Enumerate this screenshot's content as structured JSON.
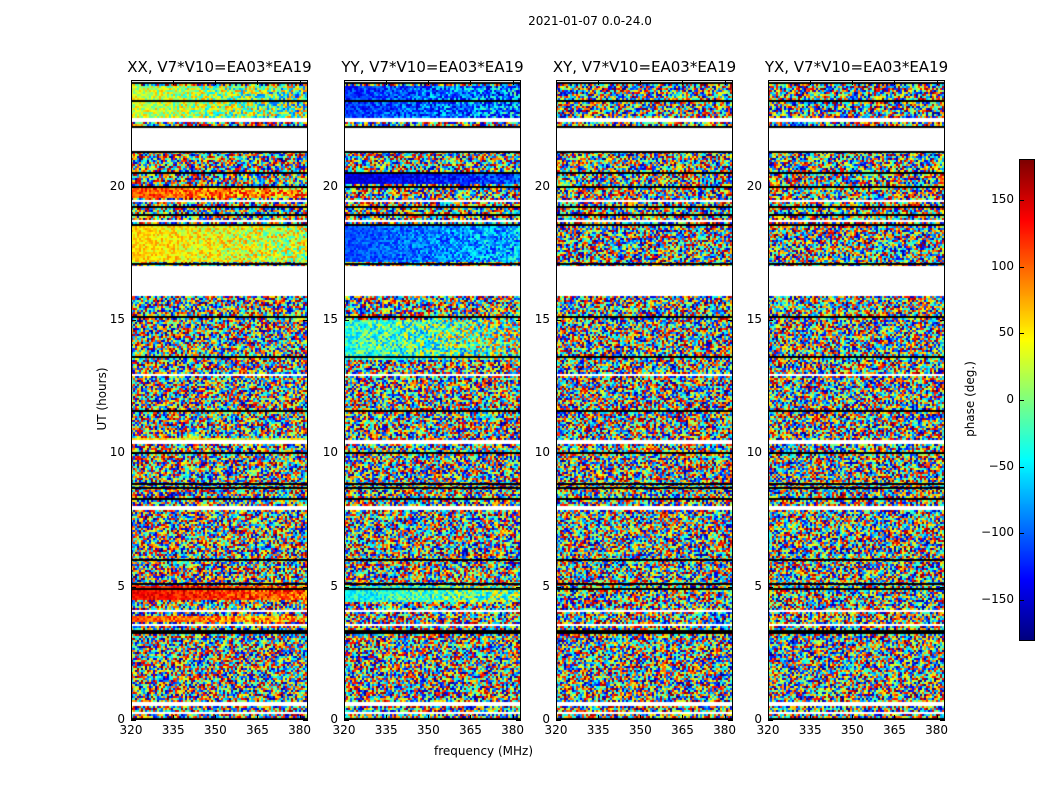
{
  "chart_data": {
    "type": "heatmap",
    "title": "2021-01-07 0.0-24.0",
    "xlabel": "frequency (MHz)",
    "ylabel": "UT (hours)",
    "xlim": [
      320,
      383
    ],
    "ylim": [
      0,
      24
    ],
    "xticks": [
      "320",
      "335",
      "350",
      "365",
      "380"
    ],
    "xtick_values": [
      320,
      335,
      350,
      365,
      380
    ],
    "yticks": [
      "0",
      "5",
      "10",
      "15",
      "20"
    ],
    "ytick_values": [
      0,
      5,
      10,
      15,
      20
    ],
    "flagged_hours": [
      [
        0.2,
        0.3
      ],
      [
        0.55,
        0.65
      ],
      [
        3.5,
        3.6
      ],
      [
        4.05,
        4.15
      ],
      [
        7.9,
        8.05
      ],
      [
        10.35,
        10.5
      ],
      [
        12.9,
        13.0
      ],
      [
        15.9,
        17.0
      ],
      [
        18.65,
        18.75
      ],
      [
        19.4,
        19.5
      ],
      [
        21.3,
        22.2
      ],
      [
        22.45,
        22.6
      ],
      [
        23.9,
        24.0
      ]
    ],
    "scan_boundaries": [
      0.05,
      3.25,
      3.35,
      4.9,
      5.1,
      6.0,
      8.3,
      8.7,
      8.85,
      10.0,
      11.6,
      13.6,
      15.1,
      17.1,
      18.55,
      18.95,
      19.25,
      20.0,
      20.5,
      21.3,
      22.25,
      23.2,
      23.9
    ],
    "panels": [
      {
        "title": "XX, V7*V10=EA03*EA19",
        "coherent_bands": [
          {
            "t0": 17.2,
            "t1": 18.5,
            "mean_phase": 60,
            "spread": 50
          },
          {
            "t0": 4.5,
            "t1": 5.0,
            "mean_phase": 140,
            "spread": 40
          },
          {
            "t0": 3.7,
            "t1": 3.9,
            "mean_phase": 110,
            "spread": 50
          },
          {
            "t0": 10.4,
            "t1": 10.6,
            "mean_phase": 60,
            "spread": 40
          },
          {
            "t0": 19.6,
            "t1": 20.0,
            "mean_phase": 110,
            "spread": 60
          },
          {
            "t0": 22.6,
            "t1": 23.8,
            "mean_phase": 30,
            "spread": 80
          }
        ]
      },
      {
        "title": "YY, V7*V10=EA03*EA19",
        "coherent_bands": [
          {
            "t0": 17.2,
            "t1": 18.5,
            "mean_phase": -110,
            "spread": 40
          },
          {
            "t0": 20.1,
            "t1": 20.5,
            "mean_phase": -150,
            "spread": 30
          },
          {
            "t0": 4.4,
            "t1": 5.0,
            "mean_phase": -40,
            "spread": 60
          },
          {
            "t0": 22.6,
            "t1": 23.8,
            "mean_phase": -120,
            "spread": 60
          },
          {
            "t0": 13.5,
            "t1": 15.0,
            "mean_phase": -30,
            "spread": 90
          }
        ]
      },
      {
        "title": "XY, V7*V10=EA03*EA19",
        "coherent_bands": []
      },
      {
        "title": "YX, V7*V10=EA03*EA19",
        "coherent_bands": []
      }
    ],
    "noise_phase_range": [
      -180,
      180
    ],
    "colorbar": {
      "label": "phase (deg.)",
      "colormap": "jet",
      "range": [
        -180,
        180
      ],
      "ticks": [
        "−150",
        "−100",
        "−50",
        "0",
        "50",
        "100",
        "150"
      ],
      "tick_values": [
        -150,
        -100,
        -50,
        0,
        50,
        100,
        150
      ]
    }
  }
}
